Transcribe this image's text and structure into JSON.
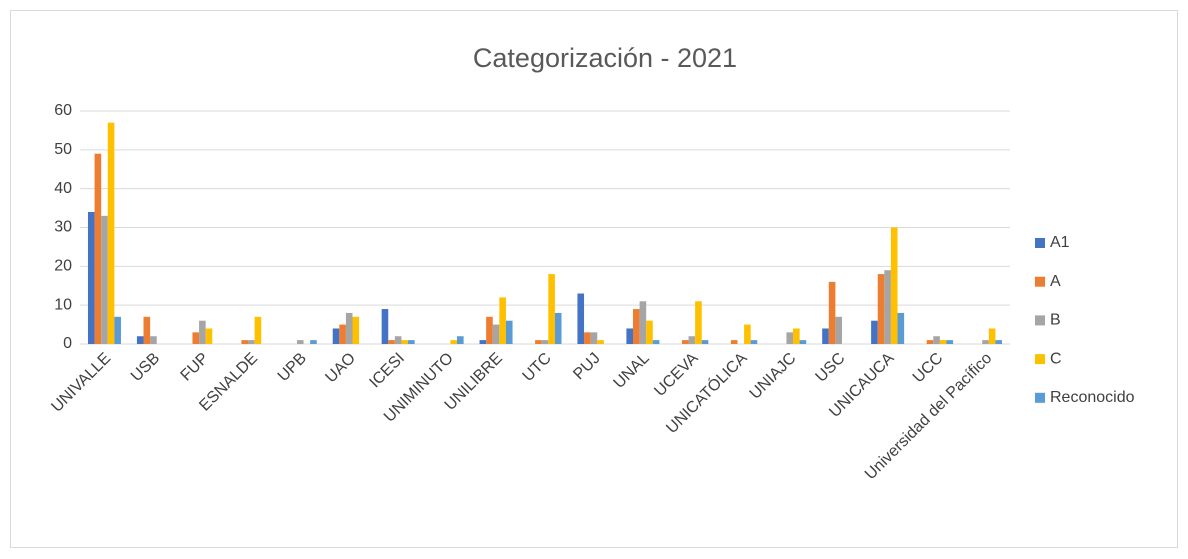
{
  "chart_data": {
    "type": "bar",
    "title": "Categorización - 2021",
    "categories": [
      "UNIVALLE",
      "USB",
      "FUP",
      "ESNALDE",
      "UPB",
      "UAO",
      "ICESI",
      "UNIMINUTO",
      "UNILIBRE",
      "UTC",
      "PUJ",
      "UNAL",
      "UCEVA",
      "UNICATÓLICA",
      "UNIAJC",
      "USC",
      "UNICAUCA",
      "UCC",
      "Universidad del Pacífico"
    ],
    "series": [
      {
        "name": "A1",
        "color": "#4472c4",
        "values": [
          34,
          2,
          0,
          0,
          0,
          4,
          9,
          0,
          1,
          0,
          13,
          4,
          0,
          0,
          0,
          4,
          6,
          0,
          0
        ]
      },
      {
        "name": "A",
        "color": "#ed7d31",
        "values": [
          49,
          7,
          3,
          1,
          0,
          5,
          1,
          0,
          7,
          1,
          3,
          9,
          1,
          1,
          0,
          16,
          18,
          1,
          0
        ]
      },
      {
        "name": "B",
        "color": "#a5a5a5",
        "values": [
          33,
          2,
          6,
          1,
          1,
          8,
          2,
          0,
          5,
          1,
          3,
          11,
          2,
          0,
          3,
          7,
          19,
          2,
          1
        ]
      },
      {
        "name": "C",
        "color": "#ffc000",
        "values": [
          57,
          0,
          4,
          7,
          0,
          7,
          1,
          1,
          12,
          18,
          1,
          6,
          11,
          5,
          4,
          0,
          30,
          1,
          4
        ]
      },
      {
        "name": "Reconocido",
        "color": "#5b9bd5",
        "values": [
          7,
          0,
          0,
          0,
          1,
          0,
          1,
          2,
          6,
          8,
          0,
          1,
          1,
          1,
          1,
          0,
          8,
          1,
          1
        ]
      }
    ],
    "ylim": [
      0,
      60
    ],
    "yticks": [
      0,
      10,
      20,
      30,
      40,
      50,
      60
    ],
    "grid": true,
    "legend": "right"
  }
}
